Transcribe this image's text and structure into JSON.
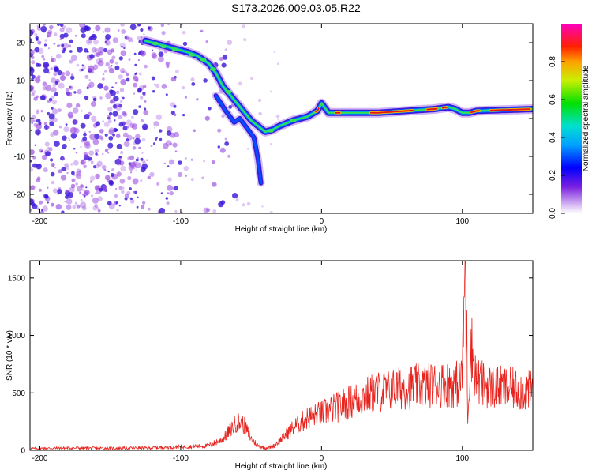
{
  "title": "S173.2026.009.03.05.R22",
  "colors": {
    "line": "#e8221c",
    "spectro_dim": "#9a4de0",
    "spectro_mid": "#3a14d8",
    "spectro_ridge": "#00c8c8",
    "spectro_peak": "#e01818"
  },
  "chart_data": [
    {
      "type": "heatmap",
      "id": "spectrogram",
      "xlabel": "Height of straight line (km)",
      "ylabel": "Frequency (Hz)",
      "xlim": [
        -207,
        150
      ],
      "ylim": [
        -25,
        25
      ],
      "x_ticks": [
        -200,
        -100,
        0,
        100
      ],
      "y_ticks": [
        -20,
        -10,
        0,
        10,
        20
      ],
      "colorbar": {
        "label": "Normalized spectral amplitude",
        "range": [
          0,
          1
        ],
        "ticks": [
          0.0,
          0.2,
          0.4,
          0.6,
          0.8
        ],
        "tick_labels": [
          "0.0",
          "0.2",
          "0.4",
          "0.6",
          "0.8"
        ]
      },
      "ridge": {
        "x": [
          -125,
          -115,
          -105,
          -95,
          -88,
          -80,
          -75,
          -70,
          -60,
          -50,
          -40,
          -35,
          -30,
          -20,
          -10,
          -3,
          0,
          5,
          10,
          20,
          40,
          60,
          80,
          90,
          95,
          100,
          105,
          110,
          150
        ],
        "y": [
          20.5,
          19.5,
          18.5,
          17.5,
          16.5,
          14.5,
          12,
          8.5,
          4,
          -0.5,
          -3.5,
          -3,
          -2,
          -0.5,
          0.5,
          2,
          4,
          1.5,
          1.5,
          1.5,
          1.5,
          2,
          2.5,
          3,
          2.5,
          1.5,
          1.5,
          2,
          2.5
        ]
      },
      "branch": {
        "x": [
          -75,
          -68,
          -62,
          -58,
          -55,
          -52,
          -48,
          -45,
          -43
        ],
        "y": [
          6,
          2,
          -1,
          0,
          -1.5,
          -3,
          -5,
          -11,
          -17
        ]
      }
    },
    {
      "type": "line",
      "id": "snr",
      "xlabel": "Height of straight line (km)",
      "ylabel": "SNR (10 * v/v)",
      "xlim": [
        -207,
        150
      ],
      "ylim": [
        0,
        1650
      ],
      "x_ticks": [
        -200,
        -100,
        0,
        100
      ],
      "y_ticks": [
        0,
        500,
        1000,
        1500
      ],
      "series": [
        {
          "name": "SNR",
          "x": [
            -207,
            -180,
            -150,
            -120,
            -100,
            -80,
            -70,
            -60,
            -55,
            -50,
            -45,
            -40,
            -35,
            -30,
            -20,
            -10,
            0,
            10,
            20,
            30,
            40,
            50,
            60,
            70,
            80,
            90,
            98,
            100,
            102,
            104,
            106,
            110,
            120,
            130,
            140,
            150
          ],
          "y": [
            15,
            20,
            18,
            22,
            30,
            40,
            100,
            250,
            220,
            100,
            40,
            20,
            30,
            80,
            200,
            280,
            320,
            370,
            420,
            470,
            510,
            530,
            550,
            560,
            570,
            575,
            580,
            700,
            1600,
            300,
            950,
            600,
            550,
            540,
            530,
            510
          ]
        }
      ]
    }
  ]
}
